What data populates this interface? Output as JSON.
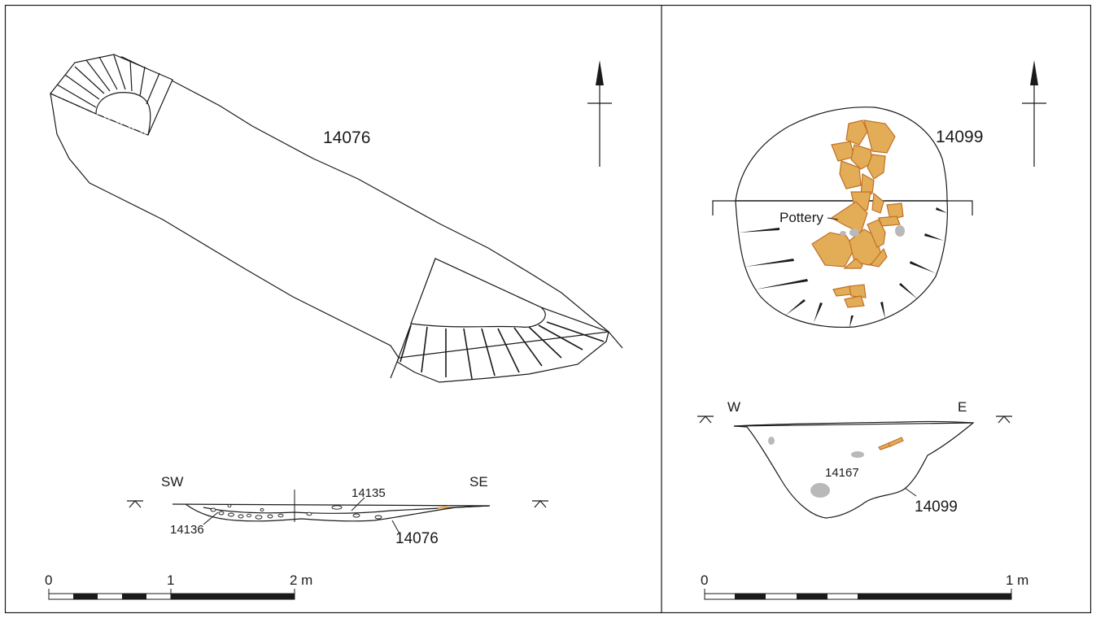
{
  "colors": {
    "fill": "#b8b29b",
    "pottery_fill": "#e3ad57",
    "pottery_edge": "#c26f27",
    "stone": "#b9b9b9",
    "ink": "#1a1a1a"
  },
  "left_panel": {
    "plan": {
      "feature_label": "14076",
      "icons": [
        "north-arrow-icon"
      ]
    },
    "section": {
      "left_orientation": "SW",
      "right_orientation": "SE",
      "labels": [
        "14135",
        "14136",
        "14076"
      ],
      "icons": [
        "datum-marker-icon"
      ]
    },
    "scale": {
      "ticks": [
        "0",
        "1",
        "2 m"
      ]
    }
  },
  "right_panel": {
    "plan": {
      "feature_label": "14099",
      "pottery_label": "Pottery",
      "icons": [
        "north-arrow-icon"
      ]
    },
    "section": {
      "left_orientation": "W",
      "right_orientation": "E",
      "labels": [
        "14167",
        "14099"
      ],
      "icons": [
        "datum-marker-icon"
      ]
    },
    "scale": {
      "ticks": [
        "0",
        "1 m"
      ]
    }
  }
}
